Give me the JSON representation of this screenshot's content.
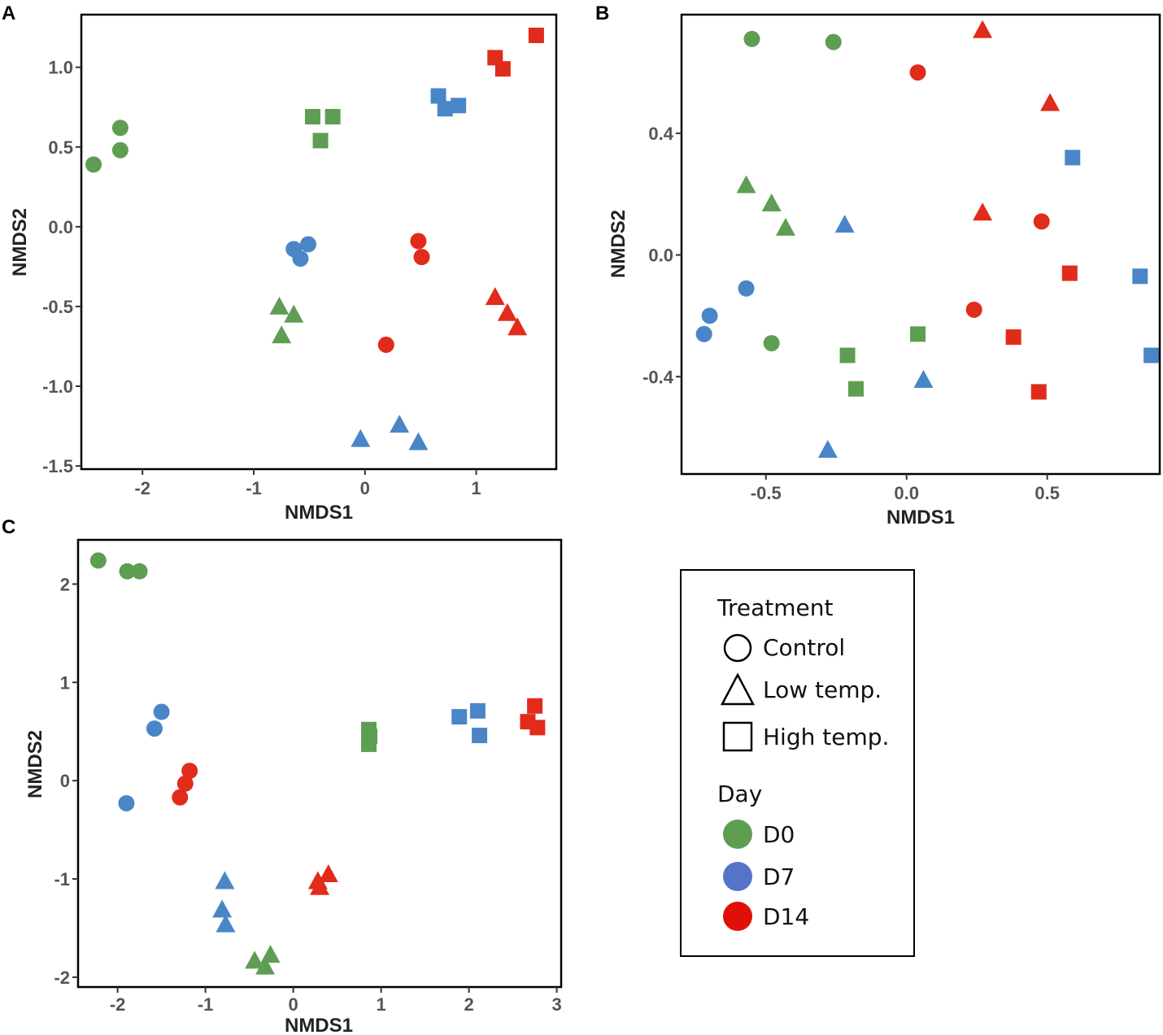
{
  "colors": {
    "D0": "#5e9e53",
    "D7": "#4a86c7",
    "D14": "#e12b1b",
    "legend_D7": "#5573c9",
    "legend_D14": "#e10f0a"
  },
  "chart_data": [
    {
      "panel": "A",
      "type": "scatter",
      "xlabel": "NMDS1",
      "ylabel": "NMDS2",
      "xlim": [
        -2.55,
        1.72
      ],
      "ylim": [
        -1.52,
        1.33
      ],
      "xticks": [
        -2,
        -1,
        0,
        1
      ],
      "xtick_labels": [
        "-2",
        "-1",
        "0",
        "1"
      ],
      "yticks": [
        1.0,
        0.5,
        0.0,
        -0.5,
        -1.0,
        -1.5
      ],
      "ytick_labels": [
        "1.0",
        "0.5",
        "0.0",
        "-0.5",
        "-1.0",
        "-1.5"
      ],
      "points": [
        {
          "x": -2.2,
          "y": 0.62,
          "day": "D0",
          "treatment": "Control"
        },
        {
          "x": -2.2,
          "y": 0.48,
          "day": "D0",
          "treatment": "Control"
        },
        {
          "x": -2.44,
          "y": 0.39,
          "day": "D0",
          "treatment": "Control"
        },
        {
          "x": -0.47,
          "y": 0.69,
          "day": "D0",
          "treatment": "High temp."
        },
        {
          "x": -0.29,
          "y": 0.69,
          "day": "D0",
          "treatment": "High temp."
        },
        {
          "x": -0.4,
          "y": 0.54,
          "day": "D0",
          "treatment": "High temp."
        },
        {
          "x": -0.77,
          "y": -0.5,
          "day": "D0",
          "treatment": "Low temp."
        },
        {
          "x": -0.64,
          "y": -0.55,
          "day": "D0",
          "treatment": "Low temp."
        },
        {
          "x": -0.75,
          "y": -0.68,
          "day": "D0",
          "treatment": "Low temp."
        },
        {
          "x": -0.64,
          "y": -0.14,
          "day": "D7",
          "treatment": "Control"
        },
        {
          "x": -0.51,
          "y": -0.11,
          "day": "D7",
          "treatment": "Control"
        },
        {
          "x": -0.58,
          "y": -0.2,
          "day": "D7",
          "treatment": "Control"
        },
        {
          "x": 0.66,
          "y": 0.82,
          "day": "D7",
          "treatment": "High temp."
        },
        {
          "x": 0.72,
          "y": 0.74,
          "day": "D7",
          "treatment": "High temp."
        },
        {
          "x": 0.84,
          "y": 0.76,
          "day": "D7",
          "treatment": "High temp."
        },
        {
          "x": -0.04,
          "y": -1.33,
          "day": "D7",
          "treatment": "Low temp."
        },
        {
          "x": 0.31,
          "y": -1.24,
          "day": "D7",
          "treatment": "Low temp."
        },
        {
          "x": 0.48,
          "y": -1.35,
          "day": "D7",
          "treatment": "Low temp."
        },
        {
          "x": 0.48,
          "y": -0.09,
          "day": "D14",
          "treatment": "Control"
        },
        {
          "x": 0.51,
          "y": -0.19,
          "day": "D14",
          "treatment": "Control"
        },
        {
          "x": 0.19,
          "y": -0.74,
          "day": "D14",
          "treatment": "Control"
        },
        {
          "x": 1.17,
          "y": 1.06,
          "day": "D14",
          "treatment": "High temp."
        },
        {
          "x": 1.24,
          "y": 0.99,
          "day": "D14",
          "treatment": "High temp."
        },
        {
          "x": 1.54,
          "y": 1.2,
          "day": "D14",
          "treatment": "High temp."
        },
        {
          "x": 1.17,
          "y": -0.44,
          "day": "D14",
          "treatment": "Low temp."
        },
        {
          "x": 1.28,
          "y": -0.54,
          "day": "D14",
          "treatment": "Low temp."
        },
        {
          "x": 1.37,
          "y": -0.63,
          "day": "D14",
          "treatment": "Low temp."
        }
      ]
    },
    {
      "panel": "B",
      "type": "scatter",
      "xlabel": "NMDS1",
      "ylabel": "NMDS2",
      "xlim": [
        -0.8,
        0.9
      ],
      "ylim": [
        -0.72,
        0.79
      ],
      "xticks": [
        -0.5,
        0.0,
        0.5
      ],
      "xtick_labels": [
        "-0.5",
        "0.0",
        "0.5"
      ],
      "yticks": [
        0.4,
        0.0,
        -0.4
      ],
      "ytick_labels": [
        "0.4",
        "0.0",
        "-0.4"
      ],
      "points": [
        {
          "x": -0.55,
          "y": 0.71,
          "day": "D0",
          "treatment": "Control"
        },
        {
          "x": -0.26,
          "y": 0.7,
          "day": "D0",
          "treatment": "Control"
        },
        {
          "x": -0.48,
          "y": -0.29,
          "day": "D0",
          "treatment": "Control"
        },
        {
          "x": -0.57,
          "y": 0.23,
          "day": "D0",
          "treatment": "Low temp."
        },
        {
          "x": -0.48,
          "y": 0.17,
          "day": "D0",
          "treatment": "Low temp."
        },
        {
          "x": -0.43,
          "y": 0.09,
          "day": "D0",
          "treatment": "Low temp."
        },
        {
          "x": -0.21,
          "y": -0.33,
          "day": "D0",
          "treatment": "High temp."
        },
        {
          "x": 0.04,
          "y": -0.26,
          "day": "D0",
          "treatment": "High temp."
        },
        {
          "x": -0.18,
          "y": -0.44,
          "day": "D0",
          "treatment": "High temp."
        },
        {
          "x": -0.57,
          "y": -0.11,
          "day": "D7",
          "treatment": "Control"
        },
        {
          "x": -0.7,
          "y": -0.2,
          "day": "D7",
          "treatment": "Control"
        },
        {
          "x": -0.72,
          "y": -0.26,
          "day": "D7",
          "treatment": "Control"
        },
        {
          "x": -0.22,
          "y": 0.1,
          "day": "D7",
          "treatment": "Low temp."
        },
        {
          "x": 0.06,
          "y": -0.41,
          "day": "D7",
          "treatment": "Low temp."
        },
        {
          "x": -0.28,
          "y": -0.64,
          "day": "D7",
          "treatment": "Low temp."
        },
        {
          "x": 0.59,
          "y": 0.32,
          "day": "D7",
          "treatment": "High temp."
        },
        {
          "x": 0.83,
          "y": -0.07,
          "day": "D7",
          "treatment": "High temp."
        },
        {
          "x": 0.87,
          "y": -0.33,
          "day": "D7",
          "treatment": "High temp."
        },
        {
          "x": 0.04,
          "y": 0.6,
          "day": "D14",
          "treatment": "Control"
        },
        {
          "x": 0.48,
          "y": 0.11,
          "day": "D14",
          "treatment": "Control"
        },
        {
          "x": 0.24,
          "y": -0.18,
          "day": "D14",
          "treatment": "Control"
        },
        {
          "x": 0.27,
          "y": 0.74,
          "day": "D14",
          "treatment": "Low temp."
        },
        {
          "x": 0.51,
          "y": 0.5,
          "day": "D14",
          "treatment": "Low temp."
        },
        {
          "x": 0.27,
          "y": 0.14,
          "day": "D14",
          "treatment": "Low temp."
        },
        {
          "x": 0.58,
          "y": -0.06,
          "day": "D14",
          "treatment": "High temp."
        },
        {
          "x": 0.38,
          "y": -0.27,
          "day": "D14",
          "treatment": "High temp."
        },
        {
          "x": 0.47,
          "y": -0.45,
          "day": "D14",
          "treatment": "High temp."
        }
      ]
    },
    {
      "panel": "C",
      "type": "scatter",
      "xlabel": "NMDS1",
      "ylabel": "NMDS2",
      "xlim": [
        -2.45,
        3.05
      ],
      "ylim": [
        -2.1,
        2.45
      ],
      "xticks": [
        -2,
        -1,
        0,
        1,
        2,
        3
      ],
      "xtick_labels": [
        "-2",
        "-1",
        "0",
        "1",
        "2",
        "3"
      ],
      "yticks": [
        2,
        1,
        0,
        -1,
        -2
      ],
      "ytick_labels": [
        "2",
        "1",
        "0",
        "-1",
        "-2"
      ],
      "points": [
        {
          "x": -2.22,
          "y": 2.24,
          "day": "D0",
          "treatment": "Control"
        },
        {
          "x": -1.89,
          "y": 2.13,
          "day": "D0",
          "treatment": "Control"
        },
        {
          "x": -1.75,
          "y": 2.13,
          "day": "D0",
          "treatment": "Control"
        },
        {
          "x": 0.86,
          "y": 0.52,
          "day": "D0",
          "treatment": "High temp."
        },
        {
          "x": 0.87,
          "y": 0.45,
          "day": "D0",
          "treatment": "High temp."
        },
        {
          "x": 0.86,
          "y": 0.37,
          "day": "D0",
          "treatment": "High temp."
        },
        {
          "x": -0.44,
          "y": -1.83,
          "day": "D0",
          "treatment": "Low temp."
        },
        {
          "x": -0.32,
          "y": -1.89,
          "day": "D0",
          "treatment": "Low temp."
        },
        {
          "x": -0.26,
          "y": -1.77,
          "day": "D0",
          "treatment": "Low temp."
        },
        {
          "x": -1.5,
          "y": 0.7,
          "day": "D7",
          "treatment": "Control"
        },
        {
          "x": -1.58,
          "y": 0.53,
          "day": "D7",
          "treatment": "Control"
        },
        {
          "x": -1.9,
          "y": -0.23,
          "day": "D7",
          "treatment": "Control"
        },
        {
          "x": 1.89,
          "y": 0.65,
          "day": "D7",
          "treatment": "High temp."
        },
        {
          "x": 2.1,
          "y": 0.71,
          "day": "D7",
          "treatment": "High temp."
        },
        {
          "x": 2.12,
          "y": 0.46,
          "day": "D7",
          "treatment": "High temp."
        },
        {
          "x": -0.78,
          "y": -1.02,
          "day": "D7",
          "treatment": "Low temp."
        },
        {
          "x": -0.81,
          "y": -1.31,
          "day": "D7",
          "treatment": "Low temp."
        },
        {
          "x": -0.77,
          "y": -1.46,
          "day": "D7",
          "treatment": "Low temp."
        },
        {
          "x": -1.18,
          "y": 0.1,
          "day": "D14",
          "treatment": "Control"
        },
        {
          "x": -1.23,
          "y": -0.03,
          "day": "D14",
          "treatment": "Control"
        },
        {
          "x": -1.29,
          "y": -0.17,
          "day": "D14",
          "treatment": "Control"
        },
        {
          "x": 2.75,
          "y": 0.76,
          "day": "D14",
          "treatment": "High temp."
        },
        {
          "x": 2.67,
          "y": 0.6,
          "day": "D14",
          "treatment": "High temp."
        },
        {
          "x": 2.78,
          "y": 0.54,
          "day": "D14",
          "treatment": "High temp."
        },
        {
          "x": 0.4,
          "y": -0.95,
          "day": "D14",
          "treatment": "Low temp."
        },
        {
          "x": 0.28,
          "y": -1.02,
          "day": "D14",
          "treatment": "Low temp."
        },
        {
          "x": 0.3,
          "y": -1.08,
          "day": "D14",
          "treatment": "Low temp."
        }
      ]
    }
  ],
  "legend": {
    "treatment_title": "Treatment",
    "treatments": [
      {
        "label": "Control",
        "shape": "circle"
      },
      {
        "label": "Low temp.",
        "shape": "triangle"
      },
      {
        "label": "High temp.",
        "shape": "square"
      }
    ],
    "day_title": "Day",
    "days": [
      {
        "label": "D0",
        "color_key": "D0"
      },
      {
        "label": "D7",
        "color_key": "legend_D7"
      },
      {
        "label": "D14",
        "color_key": "legend_D14"
      }
    ]
  }
}
